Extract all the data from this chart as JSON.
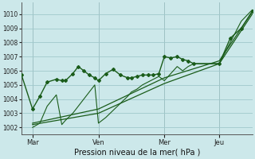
{
  "background_color": "#cce8ea",
  "grid_color": "#a0c8cc",
  "line_color": "#1a5c1a",
  "marker_color": "#1a5c1a",
  "xlabel": "Pression niveau de la mer( hPa )",
  "ylim": [
    1001.5,
    1010.8
  ],
  "yticks": [
    1002,
    1003,
    1004,
    1005,
    1006,
    1007,
    1008,
    1009,
    1010
  ],
  "xtick_labels": [
    "Mar",
    "Ven",
    "Mer",
    "Jeu"
  ],
  "xtick_positions": [
    12,
    84,
    156,
    216
  ],
  "xlim": [
    0,
    252
  ],
  "vlines": [
    12,
    84,
    156,
    216
  ],
  "s1_x": [
    0,
    12,
    20,
    28,
    38,
    44,
    48,
    56,
    62,
    68,
    74,
    80,
    84,
    92,
    100,
    108,
    116,
    120,
    126,
    132,
    138,
    144,
    150,
    156,
    163,
    170,
    176,
    182,
    188,
    216,
    228,
    240,
    252
  ],
  "s1_y": [
    1005.7,
    1003.3,
    1004.2,
    1005.2,
    1005.4,
    1005.3,
    1005.3,
    1005.8,
    1006.3,
    1006.0,
    1005.7,
    1005.5,
    1005.3,
    1005.8,
    1006.1,
    1005.7,
    1005.5,
    1005.5,
    1005.6,
    1005.7,
    1005.7,
    1005.7,
    1005.8,
    1007.0,
    1006.9,
    1007.0,
    1006.8,
    1006.7,
    1006.5,
    1006.5,
    1008.3,
    1009.0,
    1010.2
  ],
  "s2_x": [
    12,
    20,
    28,
    38,
    44,
    48,
    56,
    62,
    68,
    74,
    80,
    84,
    92,
    100,
    108,
    116,
    120,
    126,
    132,
    138,
    144,
    150,
    156,
    163,
    170,
    176,
    182,
    188,
    216,
    228,
    240,
    252
  ],
  "s2_y": [
    1002.0,
    1002.3,
    1003.5,
    1004.3,
    1002.2,
    1002.5,
    1003.0,
    1003.5,
    1004.0,
    1004.5,
    1005.0,
    1002.3,
    1002.7,
    1003.2,
    1003.7,
    1004.2,
    1004.5,
    1004.7,
    1005.0,
    1005.2,
    1005.4,
    1005.6,
    1005.3,
    1005.8,
    1006.3,
    1006.0,
    1006.3,
    1006.5,
    1006.5,
    1008.0,
    1009.5,
    1010.3
  ],
  "s3_x": [
    12,
    84,
    156,
    216,
    252
  ],
  "s3_y": [
    1002.2,
    1003.0,
    1005.1,
    1006.5,
    1010.0
  ],
  "s4_x": [
    12,
    84,
    156,
    216,
    252
  ],
  "s4_y": [
    1002.3,
    1003.3,
    1005.5,
    1006.7,
    1010.15
  ]
}
